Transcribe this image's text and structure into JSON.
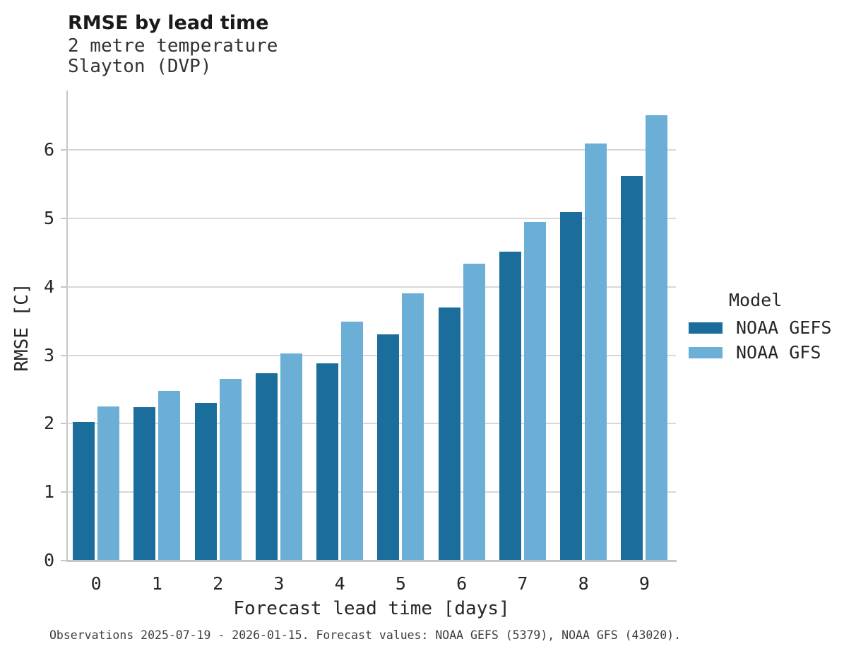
{
  "header": {
    "title": "RMSE by lead time",
    "subtitle1": "2 metre temperature",
    "subtitle2": "Slayton (DVP)"
  },
  "chart_data": {
    "type": "bar",
    "title": "RMSE by lead time",
    "subtitle": [
      "2 metre temperature",
      "Slayton (DVP)"
    ],
    "categories": [
      "0",
      "1",
      "2",
      "3",
      "4",
      "5",
      "6",
      "7",
      "8",
      "9"
    ],
    "series": [
      {
        "name": "NOAA GEFS",
        "color": "#1b6d9c",
        "values": [
          2.03,
          2.24,
          2.3,
          2.74,
          2.88,
          3.31,
          3.7,
          4.51,
          5.09,
          5.62
        ]
      },
      {
        "name": "NOAA GFS",
        "color": "#6bafd6",
        "values": [
          2.25,
          2.48,
          2.65,
          3.03,
          3.49,
          3.91,
          4.34,
          4.95,
          6.1,
          6.51
        ]
      }
    ],
    "xlabel": "Forecast lead time [days]",
    "ylabel": "RMSE [C]",
    "ylim": [
      0,
      6.87
    ],
    "yticks": [
      0,
      1,
      2,
      3,
      4,
      5,
      6
    ],
    "grid": "horizontal",
    "legend": {
      "title": "Model",
      "position": "right"
    }
  },
  "colors": {
    "noaa_gefs": "#1b6d9c",
    "noaa_gfs": "#6bafd6",
    "gridline": "#d8d8d8",
    "axis": "#c6c6c6"
  },
  "caption": "Observations 2025-07-19 - 2026-01-15. Forecast values: NOAA GEFS (5379), NOAA GFS (43020)."
}
